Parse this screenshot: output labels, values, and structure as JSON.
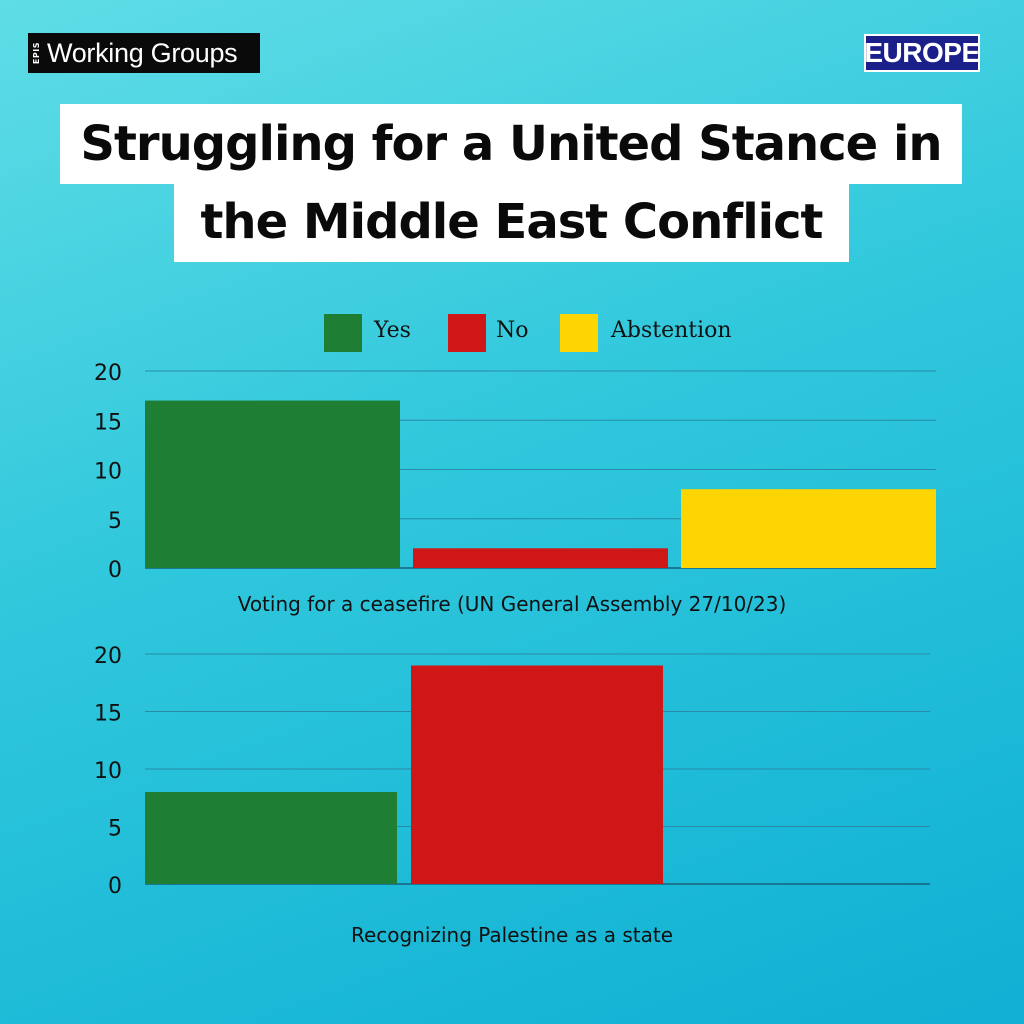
{
  "brand": {
    "mark": "EPIS",
    "text": "Working Groups"
  },
  "region": "EUROPE",
  "title": [
    "Struggling for a United Stance in",
    "the Middle East Conflict"
  ],
  "colors": {
    "yes": "#1e7e34",
    "no": "#d01717",
    "abstention": "#fdd500"
  },
  "chart_data": [
    {
      "type": "bar",
      "title": "Voting for a ceasefire (UN General Assembly 27/10/23)",
      "categories": [
        "Yes",
        "No",
        "Abstention"
      ],
      "values": [
        17,
        2,
        8
      ],
      "legend": [
        "Yes",
        "No",
        "Abstention"
      ],
      "legend_placement": "top",
      "ylim": [
        0,
        20
      ],
      "yticks": [
        "0",
        "5",
        "10",
        "15",
        "20"
      ],
      "grid": true
    },
    {
      "type": "bar",
      "title": "Recognizing Palestine as a state",
      "categories": [
        "Yes",
        "No",
        "Abstention"
      ],
      "values": [
        8,
        19,
        0
      ],
      "ylim": [
        0,
        20
      ],
      "yticks": [
        "0",
        "5",
        "10",
        "15",
        "20"
      ],
      "grid": true
    }
  ]
}
